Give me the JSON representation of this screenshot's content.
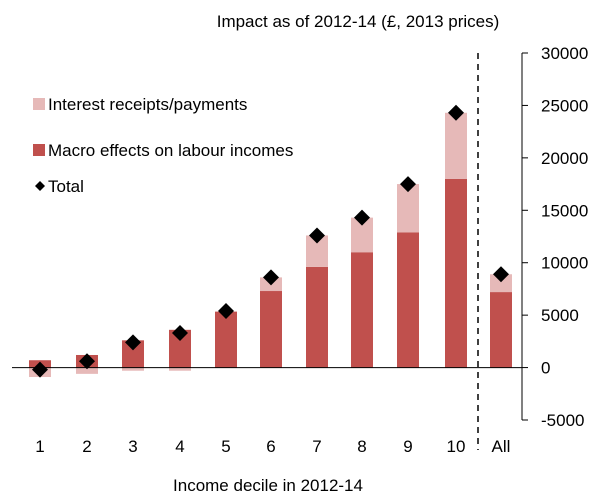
{
  "chart_data": {
    "type": "bar",
    "title": "Impact as of 2012-14 (£, 2013 prices)",
    "xlabel": "Income decile in 2012-14",
    "ylabel": "",
    "categories": [
      "1",
      "2",
      "3",
      "4",
      "5",
      "6",
      "7",
      "8",
      "9",
      "10",
      "All"
    ],
    "ylim": [
      -5000,
      30000
    ],
    "yticks": [
      30000,
      25000,
      20000,
      15000,
      10000,
      5000,
      0,
      -5000
    ],
    "ytick_labels": [
      "30000",
      "25000",
      "20000",
      "15000",
      "10000",
      "5000",
      "0",
      "-5000"
    ],
    "stacked": true,
    "series": [
      {
        "name": "Macro effects on labour incomes",
        "kind": "bar",
        "color": "#c0504d",
        "values": [
          700,
          1200,
          2600,
          3600,
          5300,
          7300,
          9600,
          11000,
          12900,
          18000,
          7200
        ]
      },
      {
        "name": "Interest receipts/payments",
        "kind": "bar",
        "color": "#e6b9b8",
        "values": [
          -900,
          -600,
          -300,
          -300,
          100,
          1300,
          3000,
          3300,
          4600,
          6300,
          1700
        ]
      },
      {
        "name": "Total",
        "kind": "marker",
        "color": "#000000",
        "values": [
          -200,
          600,
          2400,
          3300,
          5400,
          8600,
          12600,
          14300,
          17500,
          24300,
          8900
        ]
      }
    ],
    "legend": {
      "placement": "top-left",
      "entries": [
        {
          "label": "Interest receipts/payments",
          "symbol": "square",
          "color": "#e6b9b8"
        },
        {
          "label": "Macro effects on labour incomes",
          "symbol": "square",
          "color": "#c0504d"
        },
        {
          "label": "Total",
          "symbol": "diamond",
          "color": "#000000"
        }
      ]
    },
    "separator": "dashed vertical line between 10 and All",
    "grid": false
  }
}
